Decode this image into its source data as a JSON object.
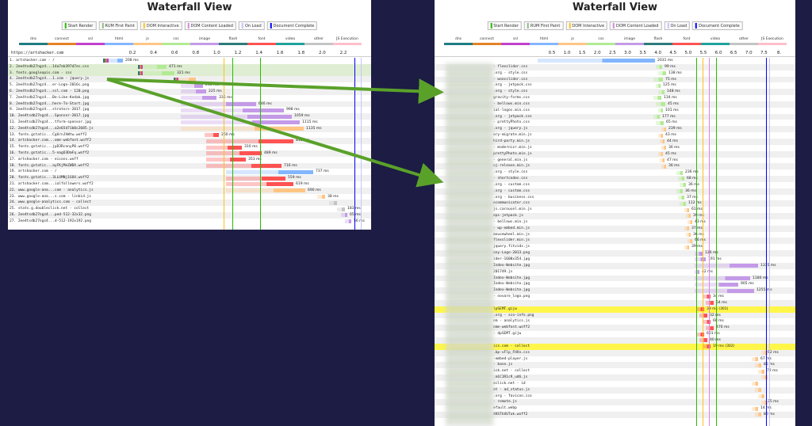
{
  "left": {
    "title": "Waterfall View",
    "legend": [
      {
        "label": "Start Render",
        "color": "#28bc00"
      },
      {
        "label": "RUM First Paint",
        "color": "#8fbc83"
      },
      {
        "label": "DOM Interactive",
        "color": "#fcc21a"
      },
      {
        "label": "DOM Content Loaded",
        "color": "#d888df"
      },
      {
        "label": "On Load",
        "color": "#c4c4ff"
      },
      {
        "label": "Document Complete",
        "color": "#0000ff"
      }
    ],
    "types": [
      {
        "label": "dns",
        "color": "#1f7c83"
      },
      {
        "label": "connect",
        "color": "#e58226"
      },
      {
        "label": "ssl",
        "color": "#c141cd"
      },
      {
        "label": "html",
        "color": "#82b6ff"
      },
      {
        "label": "js",
        "color": "#fec584"
      },
      {
        "label": "css",
        "color": "#b2ea94"
      },
      {
        "label": "image",
        "color": "#c49ae8"
      },
      {
        "label": "flash",
        "color": "#2d7b7b"
      },
      {
        "label": "font",
        "color": "#ff5252"
      },
      {
        "label": "video",
        "color": "#1fa29b"
      },
      {
        "label": "other",
        "color": "#c4c4c4"
      },
      {
        "label": "JS Execution",
        "color": "#ffc0cb"
      }
    ],
    "url_header": "https://artshacker.com",
    "ticks": [
      "0.2",
      "0.4",
      "0.6",
      "0.8",
      "1.0",
      "1.2",
      "1.4",
      "1.6",
      "1.8",
      "2.0",
      "2.2"
    ],
    "rows": [
      {
        "label": "1. artshacker.com - /",
        "ms": "208 ms",
        "hl": false
      },
      {
        "label": "2. 2ee4tsdb27ngz4...14a7eb397d7ec.css",
        "ms": "471 ms",
        "hl": true
      },
      {
        "label": "3. fonts.googleapis.com - css",
        "ms": "321 ms",
        "hl": true
      },
      {
        "label": "4. 2ee4tsdb27ngz4...1.com - jquery.js",
        "ms": "",
        "hl": false
      },
      {
        "label": "5. 2ee4tsdb27ngz4...er-Logo-2016c.png",
        "ms": "218 ms",
        "hl": false
      },
      {
        "label": "6. 2ee4tsdb27ngz4...ssl.com - 120.png",
        "ms": "225 ms",
        "hl": false
      },
      {
        "label": "7. 2ee4tsdb27ngz4...Be-Like-Kodak.jpg",
        "ms": "336 ms",
        "hl": false
      },
      {
        "label": "8. 2ee4tsdb27ngz4...here-To-Start.jpg",
        "ms": "646 ms",
        "hl": false
      },
      {
        "label": "9. 2ee4tsdb27ngz4...strators-2017.jpg",
        "ms": "998 ms",
        "hl": false
      },
      {
        "label": "10. 2ee4tsdb27ngz4...Sponsor-2017.jpg",
        "ms": "1059 ms",
        "hl": false
      },
      {
        "label": "11. 2ee4tsdb27ngz4...tform-sponsor.jpg",
        "ms": "1115 ms",
        "hl": false
      },
      {
        "label": "12. 2ee4tsdb27ngz4...a2e65d71b0c2685.js",
        "ms": "1135 ms",
        "hl": false
      },
      {
        "label": "13. fonts.gstatic...CgUrnJhWtw.woff2",
        "ms": "260 ms",
        "hl": false
      },
      {
        "label": "14. artshacker.com...ome-webfont.woff2",
        "ms": "815 ms",
        "hl": false
      },
      {
        "label": "15. fonts.gstatic...jpD3RcnnyP8.woff2",
        "ms": "310 ms",
        "hl": false
      },
      {
        "label": "16. fonts.gstatic...5-nagO3DmFq.woff2",
        "ms": "489 ms",
        "hl": false
      },
      {
        "label": "17. artshacker.com - eicons.woff",
        "ms": "353 ms",
        "hl": false
      },
      {
        "label": "18. fonts.gstatic...ayFKjMeZWDA.woff2",
        "ms": "716 ms",
        "hl": false
      },
      {
        "label": "19. artshacker.com - /",
        "ms": "737 ms",
        "hl": false
      },
      {
        "label": "20. fonts.gstatic...3LLUMNj1GO4.woff2",
        "ms": "559 ms",
        "hl": false
      },
      {
        "label": "21. artshacker.com...ialfollowers.woff2",
        "ms": "619 ms",
        "hl": false
      },
      {
        "label": "22. www.google-ana...com - analytics.js",
        "ms": "690 ms",
        "hl": false
      },
      {
        "label": "23. www.google-ana...s.com - linkid.js",
        "ms": "38 ms",
        "hl": false
      },
      {
        "label": "24. www.google-analytics.com - collect",
        "ms": "",
        "hl": false
      },
      {
        "label": "25. stats.g.doubleclick.net - collect",
        "ms": "183 ms",
        "hl": false
      },
      {
        "label": "26. 2ee4tsdb27ngz4...ped-512-32x32.png",
        "ms": "65 ms",
        "hl": false
      },
      {
        "label": "27. 2ee4tsdb27ngz4...d-512-192x192.png",
        "ms": "56 ms",
        "hl": false
      }
    ]
  },
  "right": {
    "title": "Waterfall View",
    "ticks": [
      "0.5",
      "1.0",
      "1.5",
      "2.0",
      "2.5",
      "3.0",
      "3.5",
      "4.0",
      "4.5",
      "5.0",
      "5.5",
      "6.0",
      "6.5",
      "7.0",
      "7.5",
      "8."
    ],
    "rows": [
      {
        "label": "",
        "ms": "2031 ms"
      },
      {
        "label": "- flexslider.css",
        "ms": "99 ms"
      },
      {
        "label": ".org - style.css",
        "ms": "138 ms"
      },
      {
        "label": "- woocslider.css",
        "ms": "75 ms"
      },
      {
        "label": ".org - jetpack.css",
        "ms": "125 ms"
      },
      {
        "label": ".org - style.css",
        "ms": "148 ms"
      },
      {
        "label": "gravity-forms.css",
        "ms": "134 ms"
      },
      {
        "label": "- bellows.min.css",
        "ms": "45 ms"
      },
      {
        "label": "ial-logos.min.css",
        "ms": "101 ms"
      },
      {
        "label": ".org - jetpack.css",
        "ms": "177 ms"
      },
      {
        "label": "- prettyPhoto.css",
        "ms": "65 ms"
      },
      {
        "label": ".org - jquery.js",
        "ms": "239 ms"
      },
      {
        "label": "ery-migrate.min.js",
        "ms": "43 ms"
      },
      {
        "label": "hird-party.min.js",
        "ms": "44 ms"
      },
      {
        "label": "- modernizr.min.js",
        "ms": "36 ms"
      },
      {
        "label": "prettyPhoto.min.js",
        "ms": "45 ms"
      },
      {
        "label": "- general.min.js",
        "ms": "47 ms"
      },
      {
        "label": "uj-release.min.js",
        "ms": "36 ms"
      },
      {
        "label": ".org - style.css",
        "ms": "236 ms"
      },
      {
        "label": "- shortcodes.css",
        "ms": "68 ms"
      },
      {
        "label": ".org - custom.css",
        "ms": "36 ms"
      },
      {
        "label": ".org - custom.css",
        "ms": "36 ms"
      },
      {
        "label": ".org - business.css",
        "ms": "37 ms"
      },
      {
        "label": "ecommunicator.css",
        "ms": "112 ms"
      },
      {
        "label": "js.carousel.min.js",
        "ms": "61 ms"
      },
      {
        "label": "eps-jetpack.js",
        "ms": "39 ms"
      },
      {
        "label": "- bellows.min.js",
        "ms": "43 ms"
      },
      {
        "label": "- wp-embed.min.js",
        "ms": "37 ms"
      },
      {
        "label": "mousewheel.min.js",
        "ms": "36 ms"
      },
      {
        "label": "flexslider.min.js",
        "ms": "66 ms"
      },
      {
        "label": "jquery.fitvids.js",
        "ms": "39 ms"
      },
      {
        "label": "ony-Logo-2013.png",
        "ms": "126 ms"
      },
      {
        "label": "ider-1600x354.jpg",
        "ms": "191 ms"
      },
      {
        "label": "Index-Website.jpg",
        "ms": "1335 ms"
      },
      {
        "label": "201749.js",
        "ms": "42 ms"
      },
      {
        "label": "Index-Website.jpg",
        "ms": "1180 ms"
      },
      {
        "label": "Index-Website.jpg",
        "ms": "905 ms"
      },
      {
        "label": "Index-Website.jpg",
        "ms": "1255 ms"
      },
      {
        "label": "- novare_logo.png",
        "ms": "34 ms"
      },
      {
        "label": "",
        "ms": "54 ms"
      },
      {
        "label": "lpSEMT.gijw",
        "ms": "39 ms (301)"
      },
      {
        "label": ".org - sco-info.png",
        "ms": "32 ms"
      },
      {
        "label": "om - analytics.js",
        "ms": "68 ms"
      },
      {
        "label": "ome-webfont.woff2",
        "ms": "476 ms"
      },
      {
        "label": "- dpSEMT.gijw",
        "ms": "601 ms"
      },
      {
        "label": "",
        "ms": "40 ms"
      },
      {
        "label": "ics.com - collect",
        "ms": "19 ms (302)"
      },
      {
        "label": ".bp-vFlp_FHXn.css",
        "ms": "92 ms"
      },
      {
        "label": "-embed-player.js",
        "ms": "67 ms"
      },
      {
        "label": "- base.js",
        "ms": "85 ms"
      },
      {
        "label": "ick.net - collect",
        "ms": "72 ms"
      },
      {
        "label": ".m1C1R1c9_ud6.js",
        "ms": ""
      },
      {
        "label": "eclick.net - id",
        "ms": ""
      },
      {
        "label": "et - ad_status.js",
        "ms": ""
      },
      {
        "label": ".org - favicon.ico",
        "ms": ""
      },
      {
        "label": "- remote.js",
        "ms": "35 ms"
      },
      {
        "label": "efault.webp",
        "ms": "14 ms"
      },
      {
        "label": "XKSThXUTuk.woff2",
        "ms": "80 ms"
      }
    ]
  }
}
